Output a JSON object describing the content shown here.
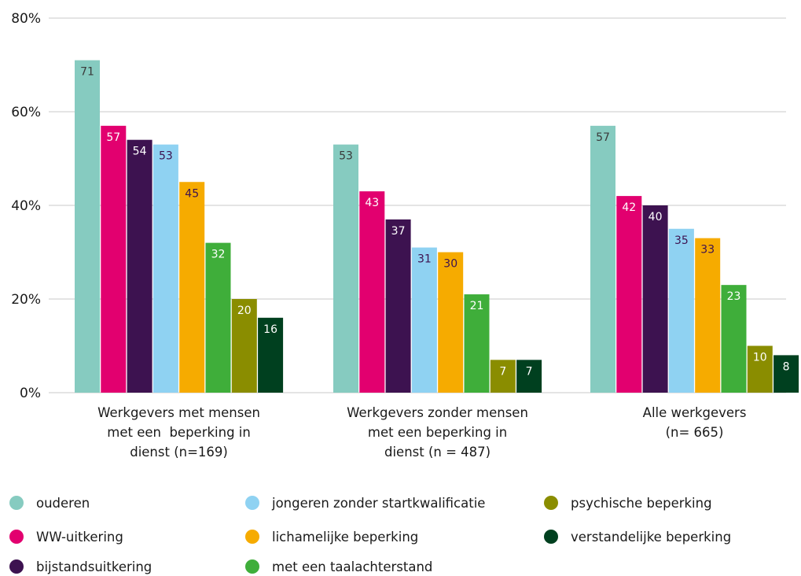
{
  "chart_data": {
    "type": "bar",
    "categories": [
      [
        "Werkgevers met mensen",
        "met een  beperking in",
        "dienst (n=169)"
      ],
      [
        "Werkgevers zonder mensen",
        "met een beperking in",
        "dienst (n = 487)"
      ],
      [
        "Alle werkgevers",
        "(n= 665)"
      ]
    ],
    "series": [
      {
        "name": "ouderen",
        "color": "#86cbc0",
        "values": [
          71,
          53,
          57
        ]
      },
      {
        "name": "WW-uitkering",
        "color": "#e2006f",
        "values": [
          57,
          43,
          42
        ]
      },
      {
        "name": "bijstandsuitkering",
        "color": "#3d1250",
        "values": [
          54,
          37,
          40
        ]
      },
      {
        "name": "jongeren zonder startkwalificatie",
        "color": "#8fd2f2",
        "values": [
          53,
          31,
          35
        ]
      },
      {
        "name": "lichamelijke beperking",
        "color": "#f6ab00",
        "values": [
          45,
          30,
          33
        ]
      },
      {
        "name": "met een taalachterstand",
        "color": "#3fae3a",
        "values": [
          32,
          21,
          23
        ]
      },
      {
        "name": "psychische beperking",
        "color": "#8a8d00",
        "values": [
          20,
          7,
          10
        ]
      },
      {
        "name": "verstandelijke beperking",
        "color": "#00401f",
        "values": [
          16,
          7,
          8
        ]
      }
    ],
    "label_colors": [
      "#3a3a3a",
      "#ffffff",
      "#ffffff",
      "#3d1250",
      "#3d1250",
      "#ffffff",
      "#ffffff",
      "#ffffff"
    ],
    "yticks": [
      "0%",
      "20%",
      "40%",
      "60%",
      "80%"
    ],
    "ylim": [
      0,
      80
    ],
    "grid": true,
    "legend_position": "bottom"
  }
}
